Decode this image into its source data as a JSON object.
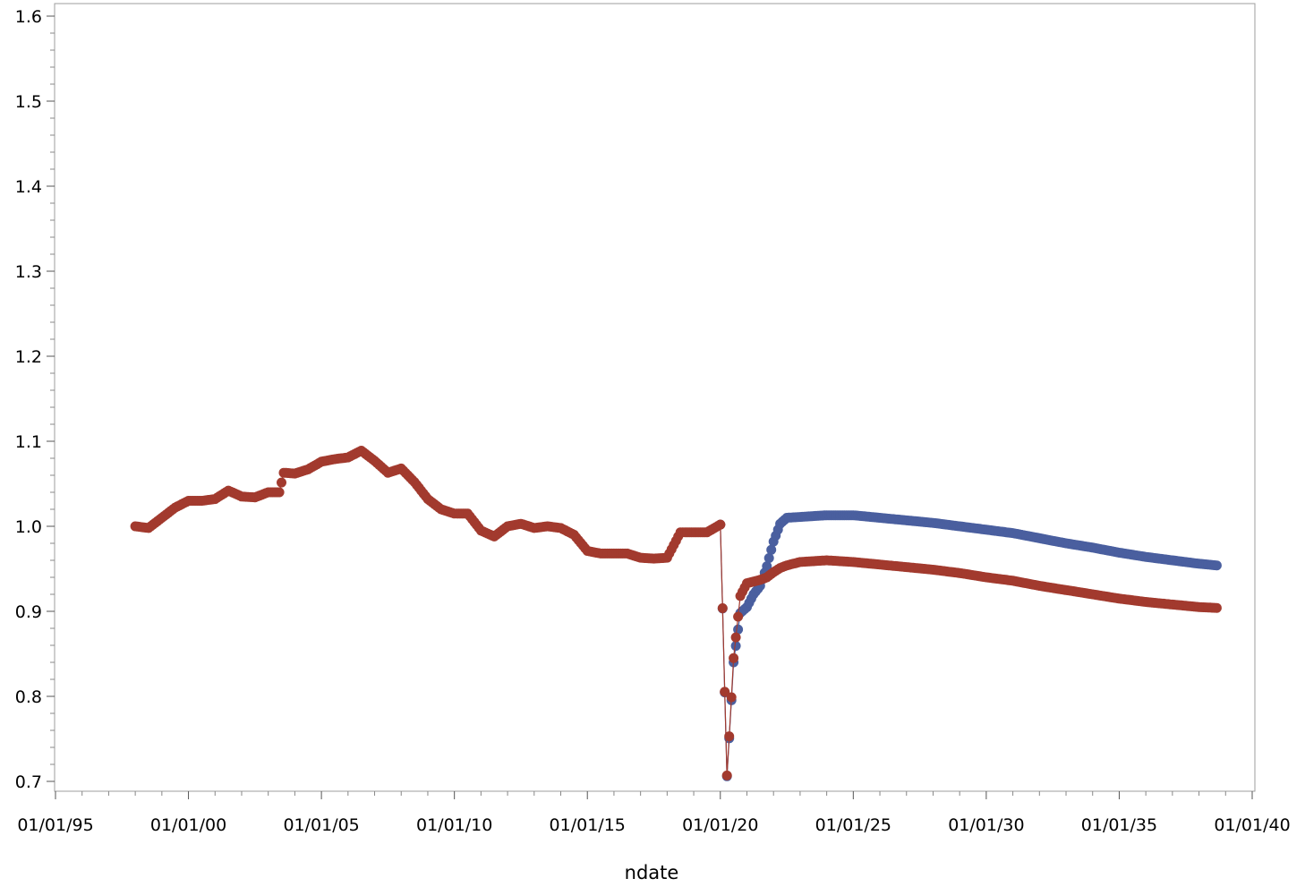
{
  "chart_data": {
    "type": "scatter",
    "xlabel": "ndate",
    "ylabel": "",
    "x_axis": {
      "scale": "date",
      "min": "1995-01-01",
      "max": "2040-01-01",
      "major_ticks": [
        "1995-01-01",
        "2000-01-01",
        "2005-01-01",
        "2010-01-01",
        "2015-01-01",
        "2020-01-01",
        "2025-01-01",
        "2030-01-01",
        "2035-01-01",
        "2040-01-01"
      ],
      "tick_labels": [
        "01/01/95",
        "01/01/00",
        "01/01/05",
        "01/01/10",
        "01/01/15",
        "01/01/20",
        "01/01/25",
        "01/01/30",
        "01/01/35",
        "01/01/40"
      ],
      "minor_ticks_per_interval": 5
    },
    "y_axis": {
      "min": 0.7,
      "max": 1.6,
      "major_ticks": [
        0.7,
        0.8,
        0.9,
        1.0,
        1.1,
        1.2,
        1.3,
        1.4,
        1.5,
        1.6
      ],
      "tick_labels": [
        "0.7",
        "0.8",
        "0.9",
        "1.0",
        "1.1",
        "1.2",
        "1.3",
        "1.4",
        "1.5",
        "1.6"
      ],
      "minor_ticks_per_interval": 5
    },
    "grid": false,
    "legend": "none",
    "markers": "filled-circle",
    "connect_points": true,
    "history": {
      "color": "#a23a2e",
      "points": [
        [
          "1998-01-01",
          1.0
        ],
        [
          "1998-07-01",
          0.998
        ],
        [
          "1999-01-01",
          1.01
        ],
        [
          "1999-07-01",
          1.022
        ],
        [
          "2000-01-01",
          1.03
        ],
        [
          "2000-07-01",
          1.03
        ],
        [
          "2001-01-01",
          1.032
        ],
        [
          "2001-07-01",
          1.042
        ],
        [
          "2002-01-01",
          1.035
        ],
        [
          "2002-07-01",
          1.034
        ],
        [
          "2003-01-01",
          1.04
        ],
        [
          "2003-06-01",
          1.04
        ],
        [
          "2003-08-01",
          1.063
        ],
        [
          "2004-01-01",
          1.062
        ],
        [
          "2004-07-01",
          1.067
        ],
        [
          "2005-01-01",
          1.076
        ],
        [
          "2005-07-01",
          1.079
        ],
        [
          "2006-01-01",
          1.081
        ],
        [
          "2006-07-01",
          1.089
        ],
        [
          "2007-01-01",
          1.077
        ],
        [
          "2007-07-01",
          1.063
        ],
        [
          "2008-01-01",
          1.068
        ],
        [
          "2008-07-01",
          1.052
        ],
        [
          "2009-01-01",
          1.032
        ],
        [
          "2009-07-01",
          1.02
        ],
        [
          "2010-01-01",
          1.015
        ],
        [
          "2010-07-01",
          1.015
        ],
        [
          "2011-01-01",
          0.995
        ],
        [
          "2011-07-01",
          0.988
        ],
        [
          "2012-01-01",
          1.0
        ],
        [
          "2012-07-01",
          1.003
        ],
        [
          "2013-01-01",
          0.998
        ],
        [
          "2013-07-01",
          1.0
        ],
        [
          "2014-01-01",
          0.998
        ],
        [
          "2014-07-01",
          0.99
        ],
        [
          "2015-01-01",
          0.971
        ],
        [
          "2015-07-01",
          0.968
        ],
        [
          "2016-01-01",
          0.968
        ],
        [
          "2016-07-01",
          0.968
        ],
        [
          "2017-01-01",
          0.963
        ],
        [
          "2017-07-01",
          0.962
        ],
        [
          "2018-01-01",
          0.963
        ],
        [
          "2018-07-01",
          0.993
        ],
        [
          "2019-01-01",
          0.993
        ],
        [
          "2019-07-01",
          0.993
        ],
        [
          "2020-01-01",
          1.002
        ]
      ]
    },
    "series": [
      {
        "color": "#4a5f9f",
        "points": [
          [
            "2020-01-01",
            1.002
          ],
          [
            "2020-04-01",
            0.706
          ],
          [
            "2020-07-01",
            0.84
          ],
          [
            "2020-10-01",
            0.898
          ],
          [
            "2021-01-01",
            0.905
          ],
          [
            "2021-04-01",
            0.92
          ],
          [
            "2021-07-01",
            0.93
          ],
          [
            "2021-10-01",
            0.953
          ],
          [
            "2022-01-01",
            0.982
          ],
          [
            "2022-04-01",
            1.003
          ],
          [
            "2022-07-01",
            1.01
          ],
          [
            "2023-01-01",
            1.011
          ],
          [
            "2024-01-01",
            1.013
          ],
          [
            "2025-01-01",
            1.013
          ],
          [
            "2026-01-01",
            1.01
          ],
          [
            "2027-01-01",
            1.007
          ],
          [
            "2028-01-01",
            1.004
          ],
          [
            "2029-01-01",
            1.0
          ],
          [
            "2030-01-01",
            0.996
          ],
          [
            "2031-01-01",
            0.992
          ],
          [
            "2032-01-01",
            0.986
          ],
          [
            "2033-01-01",
            0.98
          ],
          [
            "2034-01-01",
            0.975
          ],
          [
            "2035-01-01",
            0.969
          ],
          [
            "2036-01-01",
            0.964
          ],
          [
            "2037-01-01",
            0.96
          ],
          [
            "2038-01-01",
            0.956
          ],
          [
            "2038-09-01",
            0.954
          ]
        ]
      },
      {
        "color": "#a23a2e",
        "points": [
          [
            "2020-01-01",
            1.002
          ],
          [
            "2020-04-01",
            0.707
          ],
          [
            "2020-07-01",
            0.845
          ],
          [
            "2020-10-01",
            0.918
          ],
          [
            "2021-01-01",
            0.933
          ],
          [
            "2021-04-01",
            0.935
          ],
          [
            "2021-07-01",
            0.937
          ],
          [
            "2021-10-01",
            0.94
          ],
          [
            "2022-01-01",
            0.946
          ],
          [
            "2022-04-01",
            0.951
          ],
          [
            "2022-07-01",
            0.954
          ],
          [
            "2023-01-01",
            0.958
          ],
          [
            "2024-01-01",
            0.96
          ],
          [
            "2025-01-01",
            0.958
          ],
          [
            "2026-01-01",
            0.955
          ],
          [
            "2027-01-01",
            0.952
          ],
          [
            "2028-01-01",
            0.949
          ],
          [
            "2029-01-01",
            0.945
          ],
          [
            "2030-01-01",
            0.94
          ],
          [
            "2031-01-01",
            0.936
          ],
          [
            "2032-01-01",
            0.93
          ],
          [
            "2033-01-01",
            0.925
          ],
          [
            "2034-01-01",
            0.92
          ],
          [
            "2035-01-01",
            0.915
          ],
          [
            "2036-01-01",
            0.911
          ],
          [
            "2037-01-01",
            0.908
          ],
          [
            "2038-01-01",
            0.905
          ],
          [
            "2038-09-01",
            0.904
          ]
        ]
      }
    ]
  }
}
